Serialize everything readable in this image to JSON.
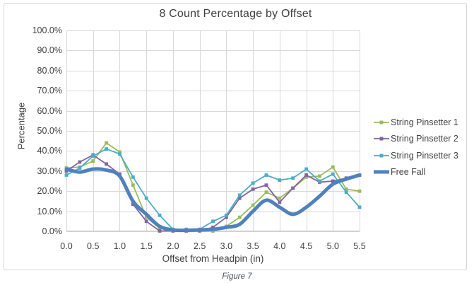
{
  "figure": {
    "caption": "Figure 7"
  },
  "chart_data": {
    "type": "line",
    "title": "8 Count Percentage by Offset",
    "xlabel": "Offset from Headpin (in)",
    "ylabel": "Percentage",
    "xlim": [
      0,
      5.5
    ],
    "ylim": [
      0,
      100
    ],
    "grid": true,
    "grid_color": "#d9d9d9",
    "axis_color": "#bfbfbf",
    "text_color": "#404040",
    "caption_color": "#44546A",
    "legend_position": "right",
    "x_tick_labels": [
      "0.0",
      "0.5",
      "1.0",
      "1.5",
      "2.0",
      "2.5",
      "3.0",
      "3.5",
      "4.0",
      "4.5",
      "5.0",
      "5.5"
    ],
    "y_tick_labels": [
      "100.0%",
      "90.0%",
      "80.0%",
      "70.0%",
      "60.0%",
      "50.0%",
      "40.0%",
      "30.0%",
      "20.0%",
      "10.0%",
      "0.0%"
    ],
    "x": [
      0,
      0.25,
      0.5,
      0.75,
      1,
      1.25,
      1.5,
      1.75,
      2,
      2.25,
      2.5,
      2.75,
      3,
      3.25,
      3.5,
      3.75,
      4,
      4.25,
      4.5,
      4.75,
      5,
      5.25,
      5.5
    ],
    "series": [
      {
        "name": "String Pinsetter 1",
        "color": "#9BBB59",
        "markers": true,
        "smooth": false,
        "line_width": 1.8,
        "values": [
          31.5,
          32,
          35,
          44,
          39.5,
          23,
          7,
          1.5,
          0.4,
          0.3,
          0.2,
          0.2,
          2.5,
          7,
          13,
          19.5,
          16.5,
          21.5,
          27,
          27.5,
          32,
          21,
          20
        ]
      },
      {
        "name": "String Pinsetter 2",
        "color": "#8064A2",
        "markers": true,
        "smooth": false,
        "line_width": 1.8,
        "values": [
          30,
          34.5,
          38,
          33.5,
          28.5,
          13.5,
          5,
          0.2,
          0.2,
          0.2,
          0.3,
          2,
          7,
          16.5,
          21,
          23,
          14.5,
          21.5,
          28,
          24.5,
          25,
          26.5,
          28
        ]
      },
      {
        "name": "String Pinsetter 3",
        "color": "#4BACC6",
        "markers": true,
        "smooth": false,
        "line_width": 1.8,
        "values": [
          28,
          31.5,
          37.5,
          41,
          38.5,
          27,
          16.5,
          8,
          1,
          1,
          1,
          5,
          8,
          18,
          24,
          28,
          25.5,
          26.5,
          31,
          25,
          28.5,
          19.5,
          12
        ]
      },
      {
        "name": "Free Fall",
        "color": "#4F81BD",
        "markers": false,
        "smooth": true,
        "line_width": 5,
        "values": [
          31,
          29.5,
          31,
          30.5,
          27.5,
          15,
          8.5,
          2.5,
          0.7,
          0.5,
          0.7,
          1,
          2,
          3.5,
          10,
          15.5,
          12,
          8.5,
          12,
          17.5,
          23.5,
          26,
          28
        ]
      }
    ]
  }
}
